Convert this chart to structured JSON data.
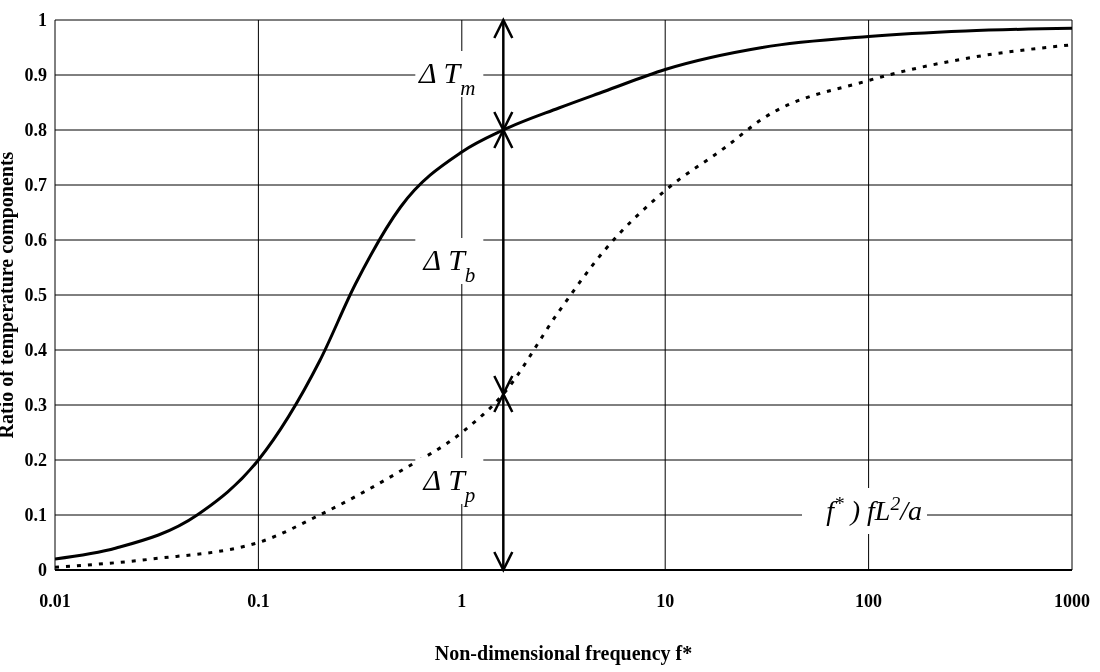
{
  "chart_data": {
    "type": "line",
    "xlabel": "Non-dimensional frequency f*",
    "ylabel": "Ratio of temperature components",
    "log": "x",
    "xlim": [
      0.01,
      1000
    ],
    "xticks": [
      0.01,
      0.1,
      1,
      10,
      100,
      1000
    ],
    "ylim": [
      0,
      1
    ],
    "yticks": [
      0,
      0.1,
      0.2,
      0.3,
      0.4,
      0.5,
      0.6,
      0.7,
      0.8,
      0.9,
      1
    ],
    "grid": true,
    "marker": "none",
    "series": [
      {
        "color": "#000000",
        "line_style": "solid",
        "x": [
          0.01,
          0.02,
          0.05,
          0.1,
          0.2,
          0.3,
          0.5,
          1,
          1.6,
          3,
          5,
          10,
          30,
          100,
          300,
          1000
        ],
        "values": [
          0.02,
          0.04,
          0.1,
          0.2,
          0.38,
          0.52,
          0.66,
          0.76,
          0.8,
          0.84,
          0.87,
          0.91,
          0.95,
          0.97,
          0.98,
          0.985
        ]
      },
      {
        "color": "#000000",
        "line_style": "dashed",
        "x": [
          0.01,
          0.03,
          0.1,
          0.2,
          0.5,
          1,
          1.6,
          3,
          5,
          10,
          20,
          30,
          100,
          300,
          1000
        ],
        "values": [
          0.005,
          0.02,
          0.05,
          0.1,
          0.18,
          0.25,
          0.32,
          0.47,
          0.58,
          0.69,
          0.77,
          0.82,
          0.89,
          0.93,
          0.955
        ]
      }
    ],
    "ref_lines": [
      {
        "axis": "x",
        "value": 1.6
      }
    ],
    "annotations": [
      "Δ T$_{m}$",
      "Δ T$_{b}$",
      "Δ T$_{p}$",
      "f$^{*}$ ) fL$^{2}$/a"
    ]
  }
}
